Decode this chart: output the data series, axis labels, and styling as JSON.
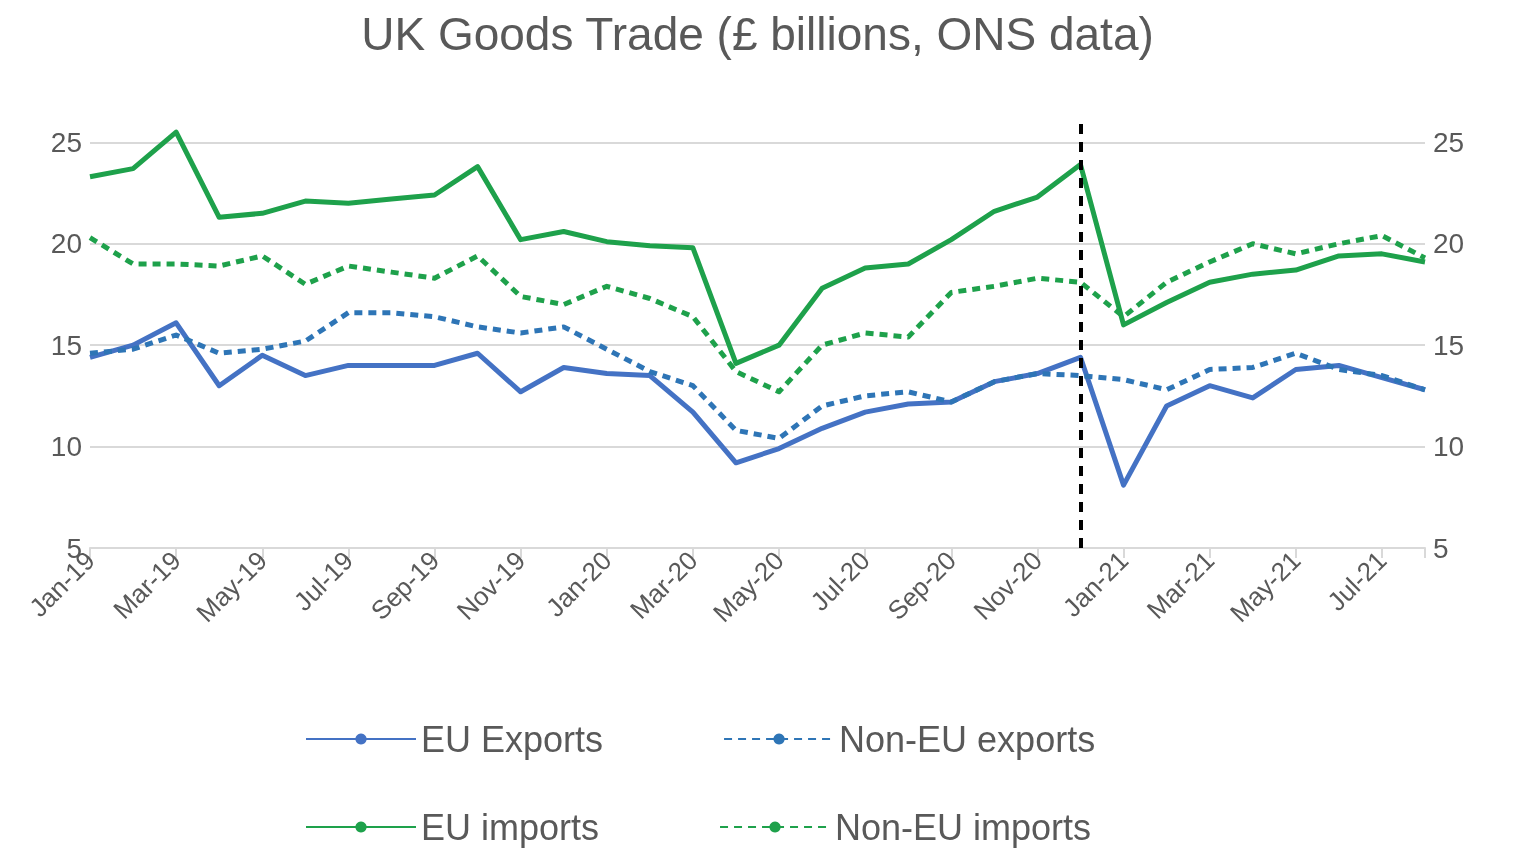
{
  "chart_data": {
    "type": "line",
    "title": "UK Goods Trade (£ billions, ONS data)",
    "categories": [
      "Jan-19",
      null,
      "Mar-19",
      null,
      "May-19",
      null,
      "Jul-19",
      null,
      "Sep-19",
      null,
      "Nov-19",
      null,
      "Jan-20",
      null,
      "Mar-20",
      null,
      "May-20",
      null,
      "Jul-20",
      null,
      "Sep-20",
      null,
      "Nov-20",
      null,
      "Jan-21",
      null,
      "Mar-21",
      null,
      "May-21",
      null,
      "Jul-21",
      null
    ],
    "series": [
      {
        "name": "EU Exports",
        "color": "#4472c4",
        "line_style": "solid",
        "values": [
          14.4,
          15.0,
          16.1,
          13.0,
          14.5,
          13.5,
          14.0,
          14.0,
          14.0,
          14.6,
          12.7,
          13.9,
          13.6,
          13.5,
          11.7,
          9.2,
          9.9,
          10.9,
          11.7,
          12.1,
          12.2,
          13.2,
          13.6,
          14.4,
          8.1,
          12.0,
          13.0,
          12.4,
          13.8,
          14.0,
          13.4,
          12.8
        ]
      },
      {
        "name": "Non-EU exports",
        "color": "#2e75b6",
        "line_style": "dashed",
        "values": [
          14.6,
          14.8,
          15.5,
          14.6,
          14.8,
          15.2,
          16.6,
          16.6,
          16.4,
          15.9,
          15.6,
          15.9,
          14.8,
          13.7,
          13.0,
          10.8,
          10.4,
          12.0,
          12.5,
          12.7,
          12.2,
          13.2,
          13.6,
          13.5,
          13.3,
          12.8,
          13.8,
          13.9,
          14.6,
          13.8,
          13.5,
          12.8
        ]
      },
      {
        "name": "EU imports",
        "color": "#1ea14b",
        "line_style": "solid",
        "values": [
          23.3,
          23.7,
          25.5,
          21.3,
          21.5,
          22.1,
          22.0,
          22.2,
          22.4,
          23.8,
          20.2,
          20.6,
          20.1,
          19.9,
          19.8,
          14.1,
          15.0,
          17.8,
          18.8,
          19.0,
          20.2,
          21.6,
          22.3,
          23.9,
          16.0,
          17.1,
          18.1,
          18.5,
          18.7,
          19.4,
          19.5,
          19.1
        ]
      },
      {
        "name": "Non-EU imports",
        "color": "#1ea14b",
        "line_style": "dashed",
        "values": [
          20.3,
          19.0,
          19.0,
          18.9,
          19.4,
          18.0,
          18.9,
          18.6,
          18.3,
          19.4,
          17.4,
          17.0,
          17.9,
          17.3,
          16.4,
          13.7,
          12.7,
          15.0,
          15.6,
          15.4,
          17.6,
          17.9,
          18.3,
          18.1,
          16.4,
          18.1,
          19.1,
          20.0,
          19.5,
          20.0,
          20.4,
          19.3
        ]
      }
    ],
    "ylim": [
      5,
      26
    ],
    "yticks": [
      5,
      10,
      15,
      20,
      25
    ],
    "y2lim": [
      5,
      26
    ],
    "y2ticks": [
      5,
      10,
      15,
      20,
      25
    ],
    "grid": "y",
    "legend": "bottom",
    "marker": "none"
  }
}
